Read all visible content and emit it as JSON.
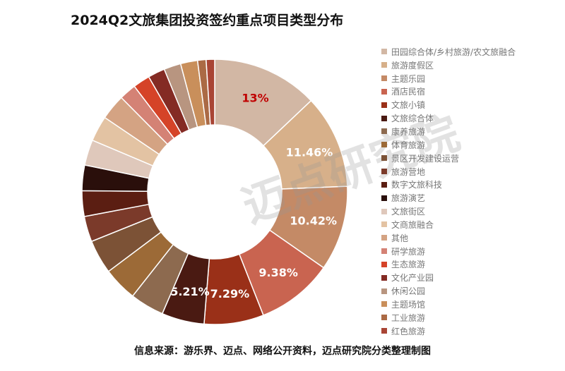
{
  "title": "2024Q2文旅集团投资签约重点项目类型分布",
  "source": "信息来源：游乐界、迈点、网络公开资料，迈点研究院分类整理制图",
  "watermark": "迈点研究院",
  "chart_data": {
    "type": "pie",
    "donut": true,
    "legend_position": "right",
    "categories": [
      "田园综合体/乡村旅游/农文旅融合",
      "旅游度假区",
      "主题乐园",
      "酒店民宿",
      "文旅小镇",
      "文旅综合体",
      "康养旅游",
      "体育旅游",
      "景区开发建设运营",
      "旅游营地",
      "数字文旅科技",
      "旅游演艺",
      "文旅街区",
      "文商旅融合",
      "其他",
      "研学旅游",
      "生态旅游",
      "文化产业园",
      "休闲公园",
      "主题场馆",
      "工业旅游",
      "红色旅游"
    ],
    "values": [
      13,
      11.46,
      10.42,
      9.38,
      7.29,
      5.21,
      4.17,
      4.17,
      4.17,
      3.13,
      3.13,
      3.13,
      3.13,
      3.13,
      3.13,
      2.08,
      2.08,
      2.08,
      2.08,
      2.08,
      1.04,
      1.04
    ],
    "data_labels": [
      "13%",
      "11.46%",
      "10.42%",
      "9.38%",
      "7.29%",
      "5.21%",
      "",
      "",
      "",
      "",
      "",
      "",
      "",
      "",
      "",
      "",
      "",
      "",
      "",
      "",
      "",
      ""
    ],
    "colors": [
      "#d2b7a4",
      "#d7b08a",
      "#c48a66",
      "#c96450",
      "#9a3018",
      "#4a1a12",
      "#8d6a4f",
      "#9c6a37",
      "#7c5236",
      "#7b3a2a",
      "#5b1e12",
      "#2a0f0b",
      "#dfc8bb",
      "#e3c3a3",
      "#d4a383",
      "#d48275",
      "#d54328",
      "#842b24",
      "#b89580",
      "#c98f5b",
      "#ab6a45",
      "#a94535"
    ],
    "label_colors": [
      "#c00000",
      "#ffffff",
      "#ffffff",
      "#ffffff",
      "#ffffff",
      "#ffffff"
    ]
  }
}
